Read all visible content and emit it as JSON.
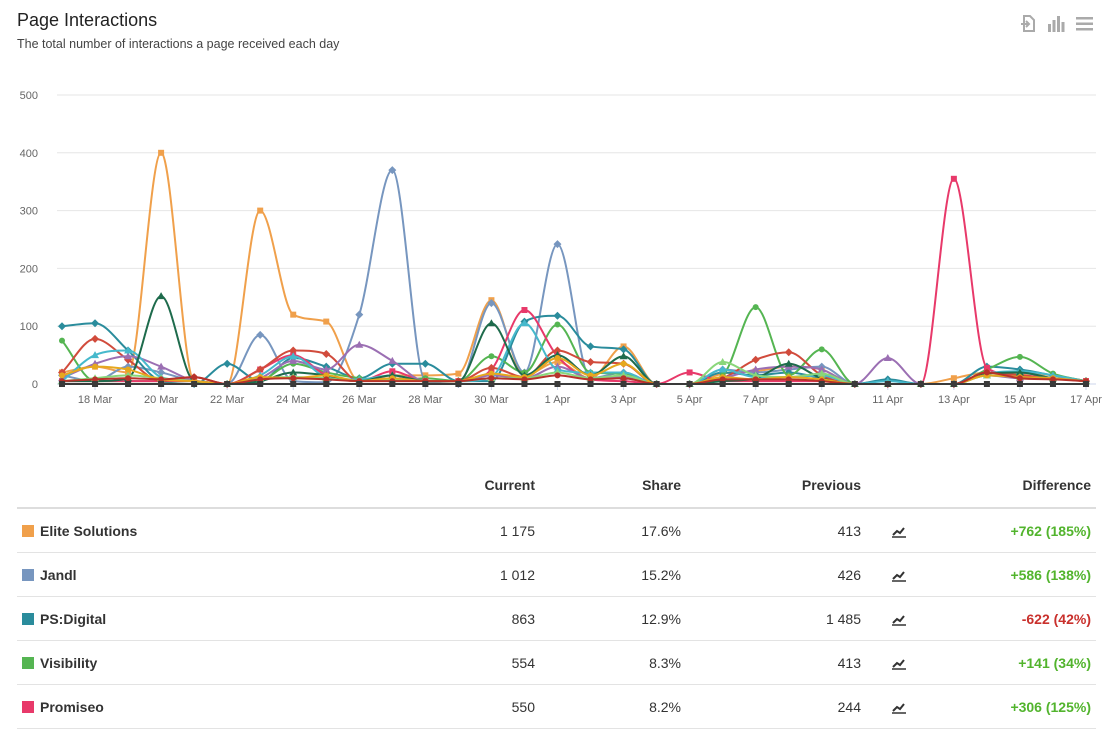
{
  "header": {
    "title": "Page Interactions",
    "subtitle": "The total number of interactions a page received each day"
  },
  "toolbar": {
    "icons": [
      "export-icon",
      "chart-type-icon",
      "menu-icon"
    ]
  },
  "table": {
    "headers": {
      "name": "",
      "current": "Current",
      "share": "Share",
      "previous": "Previous",
      "trend": "",
      "difference": "Difference"
    },
    "rows": [
      {
        "name": "Elite Solutions",
        "color": "#f0a04b",
        "current": "1 175",
        "share": "17.6%",
        "previous": "413",
        "difference": "+762 (185%)",
        "diff_color": "#52b42d"
      },
      {
        "name": "Jandl",
        "color": "#7796bf",
        "current": "1 012",
        "share": "15.2%",
        "previous": "426",
        "difference": "+586 (138%)",
        "diff_color": "#52b42d"
      },
      {
        "name": "PS:Digital",
        "color": "#2a8c9c",
        "current": "863",
        "share": "12.9%",
        "previous": "1 485",
        "difference": "-622 (42%)",
        "diff_color": "#c9302c"
      },
      {
        "name": "Visibility",
        "color": "#55b552",
        "current": "554",
        "share": "8.3%",
        "previous": "413",
        "difference": "+141 (34%)",
        "diff_color": "#52b42d"
      },
      {
        "name": "Promiseo",
        "color": "#e8396a",
        "current": "550",
        "share": "8.2%",
        "previous": "244",
        "difference": "+306 (125%)",
        "diff_color": "#52b42d"
      }
    ]
  },
  "chart_data": {
    "type": "line",
    "title": "Page Interactions",
    "subtitle": "The total number of interactions a page received each day",
    "xlabel": "",
    "ylabel": "",
    "ylim": [
      0,
      500
    ],
    "yticks": [
      0,
      100,
      200,
      300,
      400,
      500
    ],
    "grid": true,
    "x": [
      "17 Mar",
      "18 Mar",
      "19 Mar",
      "20 Mar",
      "21 Mar",
      "22 Mar",
      "23 Mar",
      "24 Mar",
      "25 Mar",
      "26 Mar",
      "27 Mar",
      "28 Mar",
      "29 Mar",
      "30 Mar",
      "31 Mar",
      "1 Apr",
      "2 Apr",
      "3 Apr",
      "4 Apr",
      "5 Apr",
      "6 Apr",
      "7 Apr",
      "8 Apr",
      "9 Apr",
      "10 Apr",
      "11 Apr",
      "12 Apr",
      "13 Apr",
      "14 Apr",
      "15 Apr",
      "16 Apr",
      "17 Apr"
    ],
    "xtick_labels": [
      "18 Mar",
      "20 Mar",
      "22 Mar",
      "24 Mar",
      "26 Mar",
      "28 Mar",
      "30 Mar",
      "1 Apr",
      "3 Apr",
      "5 Apr",
      "7 Apr",
      "9 Apr",
      "11 Apr",
      "13 Apr",
      "15 Apr",
      "17 Apr"
    ],
    "series": [
      {
        "name": "Elite Solutions",
        "color": "#f0a04b",
        "values": [
          20,
          30,
          20,
          400,
          5,
          0,
          300,
          120,
          108,
          5,
          15,
          15,
          18,
          145,
          15,
          38,
          10,
          65,
          0,
          0,
          18,
          22,
          30,
          25,
          0,
          0,
          0,
          10,
          20,
          18,
          15,
          5
        ]
      },
      {
        "name": "Jandl",
        "color": "#7796bf",
        "values": [
          15,
          5,
          30,
          20,
          5,
          0,
          85,
          5,
          3,
          120,
          370,
          5,
          0,
          140,
          20,
          242,
          10,
          20,
          0,
          0,
          25,
          20,
          25,
          30,
          0,
          0,
          0,
          0,
          20,
          20,
          10,
          5
        ]
      },
      {
        "name": "PS:Digital",
        "color": "#2a8c9c",
        "values": [
          100,
          105,
          58,
          5,
          0,
          35,
          5,
          45,
          30,
          10,
          35,
          35,
          5,
          5,
          108,
          118,
          65,
          60,
          0,
          0,
          20,
          15,
          20,
          10,
          0,
          8,
          0,
          0,
          30,
          25,
          15,
          5
        ]
      },
      {
        "name": "Visibility",
        "color": "#55b552",
        "values": [
          75,
          5,
          5,
          5,
          5,
          0,
          5,
          35,
          20,
          10,
          5,
          10,
          5,
          48,
          20,
          103,
          20,
          18,
          0,
          0,
          15,
          133,
          15,
          60,
          0,
          0,
          0,
          0,
          25,
          47,
          18,
          5
        ]
      },
      {
        "name": "Promiseo",
        "color": "#e8396a",
        "values": [
          5,
          5,
          5,
          5,
          5,
          0,
          25,
          50,
          15,
          5,
          22,
          5,
          5,
          25,
          128,
          48,
          8,
          5,
          0,
          20,
          5,
          5,
          5,
          5,
          0,
          0,
          0,
          355,
          28,
          15,
          10,
          5
        ]
      },
      {
        "name": "",
        "color": "#d14b3c",
        "values": [
          20,
          78,
          42,
          5,
          12,
          0,
          25,
          58,
          52,
          5,
          10,
          5,
          5,
          28,
          12,
          58,
          38,
          35,
          0,
          0,
          10,
          42,
          55,
          15,
          0,
          0,
          0,
          0,
          20,
          15,
          10,
          5
        ]
      },
      {
        "name": "",
        "color": "#9b6fb3",
        "values": [
          10,
          35,
          48,
          30,
          5,
          0,
          10,
          40,
          25,
          68,
          40,
          5,
          5,
          15,
          10,
          30,
          10,
          12,
          0,
          0,
          10,
          25,
          30,
          25,
          0,
          45,
          0,
          0,
          15,
          10,
          10,
          5
        ]
      },
      {
        "name": "",
        "color": "#46b9cc",
        "values": [
          5,
          50,
          58,
          12,
          5,
          0,
          15,
          48,
          12,
          8,
          15,
          5,
          5,
          12,
          105,
          25,
          20,
          20,
          0,
          0,
          25,
          12,
          12,
          15,
          0,
          5,
          0,
          0,
          18,
          22,
          15,
          5
        ]
      },
      {
        "name": "",
        "color": "#1e6b4c",
        "values": [
          5,
          5,
          10,
          152,
          5,
          0,
          5,
          20,
          15,
          5,
          15,
          5,
          5,
          105,
          15,
          50,
          15,
          48,
          0,
          0,
          5,
          10,
          35,
          10,
          0,
          0,
          0,
          0,
          18,
          20,
          10,
          5
        ]
      },
      {
        "name": "",
        "color": "#8ad67a",
        "values": [
          5,
          10,
          15,
          10,
          5,
          0,
          10,
          12,
          10,
          5,
          8,
          5,
          5,
          10,
          10,
          20,
          10,
          15,
          0,
          0,
          38,
          15,
          12,
          18,
          0,
          0,
          0,
          0,
          15,
          12,
          10,
          5
        ]
      },
      {
        "name": "",
        "color": "#e6a81e",
        "values": [
          15,
          30,
          25,
          8,
          5,
          0,
          12,
          10,
          15,
          5,
          10,
          5,
          5,
          18,
          12,
          45,
          15,
          35,
          0,
          0,
          12,
          8,
          12,
          8,
          0,
          0,
          0,
          0,
          15,
          12,
          10,
          5
        ]
      },
      {
        "name": "",
        "color": "#b8322a",
        "values": [
          5,
          8,
          10,
          8,
          12,
          0,
          8,
          10,
          8,
          5,
          5,
          5,
          5,
          10,
          8,
          15,
          8,
          10,
          0,
          0,
          8,
          8,
          8,
          5,
          0,
          0,
          0,
          0,
          20,
          10,
          8,
          5
        ]
      },
      {
        "name": "",
        "color": "#3a3a3a",
        "values": [
          0,
          0,
          0,
          0,
          0,
          0,
          0,
          0,
          0,
          0,
          0,
          0,
          0,
          0,
          0,
          0,
          0,
          0,
          0,
          0,
          0,
          0,
          0,
          0,
          0,
          0,
          0,
          0,
          0,
          0,
          0,
          0
        ]
      }
    ]
  }
}
